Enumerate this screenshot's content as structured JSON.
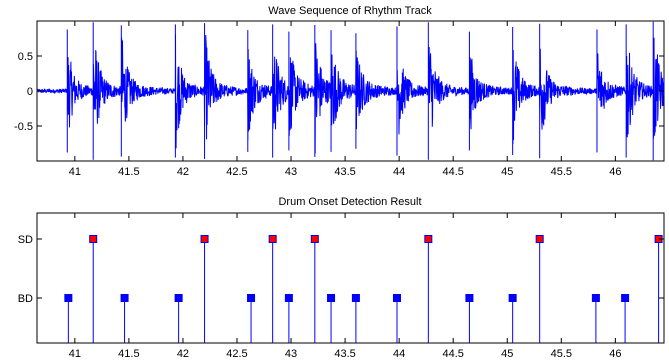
{
  "chart_data": [
    {
      "type": "line",
      "title": "Wave Sequence of Rhythm Track",
      "xlabel": "",
      "ylabel": "",
      "xlim": [
        40.65,
        46.45
      ],
      "ylim": [
        -1.0,
        1.0
      ],
      "x_ticks": [
        41,
        41.5,
        42,
        42.5,
        43,
        43.5,
        44,
        44.5,
        45,
        45.5,
        46
      ],
      "y_ticks": [
        0.5,
        0,
        -0.5
      ],
      "grid": false,
      "color": "#0000ff",
      "onset_times": [
        40.93,
        41.17,
        41.43,
        41.93,
        42.2,
        42.6,
        42.83,
        42.98,
        43.22,
        43.37,
        43.6,
        43.98,
        44.27,
        44.65,
        45.05,
        45.3,
        45.83,
        46.1,
        46.35
      ],
      "onset_strengths": [
        0.62,
        0.85,
        0.75,
        0.78,
        0.82,
        0.6,
        0.78,
        0.55,
        0.76,
        0.6,
        0.5,
        0.72,
        0.85,
        0.55,
        0.7,
        0.8,
        0.62,
        0.78,
        0.88
      ]
    },
    {
      "type": "stem",
      "title": "Drum Onset Detection Result",
      "xlabel": "",
      "ylabel": "",
      "xlim": [
        40.65,
        46.45
      ],
      "categories": [
        "BD",
        "SD"
      ],
      "x_ticks": [
        41,
        41.5,
        42,
        42.5,
        43,
        43.5,
        44,
        44.5,
        45,
        45.5,
        46
      ],
      "grid": false,
      "series": [
        {
          "label": "SD",
          "color": "#ff0000",
          "x": [
            41.17,
            42.2,
            42.83,
            43.22,
            44.27,
            45.3,
            46.4
          ]
        },
        {
          "label": "BD",
          "color": "#0000ff",
          "x": [
            40.94,
            41.46,
            41.96,
            42.63,
            42.98,
            43.37,
            43.6,
            43.98,
            44.65,
            45.05,
            45.82,
            46.09
          ]
        }
      ]
    }
  ]
}
